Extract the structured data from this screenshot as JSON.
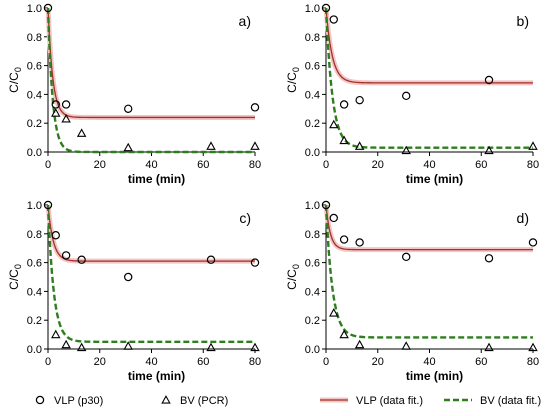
{
  "chart_data": [
    {
      "type": "scatter",
      "panel_label": "a)",
      "xlabel": "time (min)",
      "ylabel_main": "C/C",
      "ylabel_sub": "0",
      "xlim": [
        0,
        80
      ],
      "ylim": [
        0,
        1.0
      ],
      "xticks": [
        "0",
        "20",
        "40",
        "60",
        "80"
      ],
      "yticks": [
        "0.0",
        "0.2",
        "0.4",
        "0.6",
        "0.8",
        "1.0"
      ],
      "series": [
        {
          "name": "VLP (p30)",
          "marker": "circle",
          "x": [
            0,
            3,
            7,
            31,
            80
          ],
          "y": [
            1.0,
            0.33,
            0.33,
            0.3,
            0.31
          ]
        },
        {
          "name": "BV (PCR)",
          "marker": "triangle",
          "x": [
            3,
            7,
            13,
            31,
            63,
            80
          ],
          "y": [
            0.27,
            0.23,
            0.13,
            0.03,
            0.04,
            0.04
          ]
        },
        {
          "name": "VLP (data fit.)",
          "style": "line",
          "c_inf": 0.24,
          "k": 0.55
        },
        {
          "name": "BV (data fit.)",
          "style": "dashed",
          "c_inf": 0.0,
          "k": 0.55
        }
      ]
    },
    {
      "type": "scatter",
      "panel_label": "b)",
      "xlabel": "time (min)",
      "ylabel_main": "C/C",
      "ylabel_sub": "0",
      "xlim": [
        0,
        80
      ],
      "ylim": [
        0,
        1.0
      ],
      "xticks": [
        "0",
        "20",
        "40",
        "60",
        "80"
      ],
      "yticks": [
        "0.0",
        "0.2",
        "0.4",
        "0.6",
        "0.8",
        "1.0"
      ],
      "series": [
        {
          "name": "VLP (p30)",
          "marker": "circle",
          "x": [
            0,
            3,
            7,
            13,
            31,
            63
          ],
          "y": [
            1.0,
            0.92,
            0.33,
            0.36,
            0.39,
            0.5
          ]
        },
        {
          "name": "BV (PCR)",
          "marker": "triangle",
          "x": [
            3,
            7,
            13,
            31,
            63,
            80
          ],
          "y": [
            0.19,
            0.08,
            0.04,
            0.01,
            0.01,
            0.04
          ]
        },
        {
          "name": "VLP (data fit.)",
          "style": "line",
          "c_inf": 0.48,
          "k": 0.42
        },
        {
          "name": "BV (data fit.)",
          "style": "dashed",
          "c_inf": 0.03,
          "k": 0.4
        }
      ]
    },
    {
      "type": "scatter",
      "panel_label": "c)",
      "xlabel": "time (min)",
      "ylabel_main": "C/C",
      "ylabel_sub": "0",
      "xlim": [
        0,
        80
      ],
      "ylim": [
        0,
        1.0
      ],
      "xticks": [
        "0",
        "20",
        "40",
        "60",
        "80"
      ],
      "yticks": [
        "0.0",
        "0.2",
        "0.4",
        "0.6",
        "0.8",
        "1.0"
      ],
      "series": [
        {
          "name": "VLP (p30)",
          "marker": "circle",
          "x": [
            0,
            3,
            7,
            13,
            31,
            63,
            80
          ],
          "y": [
            1.0,
            0.79,
            0.65,
            0.62,
            0.5,
            0.62,
            0.6
          ]
        },
        {
          "name": "BV (PCR)",
          "marker": "triangle",
          "x": [
            3,
            7,
            13,
            31,
            63,
            80
          ],
          "y": [
            0.1,
            0.03,
            0.01,
            0.02,
            0.01,
            0.01
          ]
        },
        {
          "name": "VLP (data fit.)",
          "style": "line",
          "c_inf": 0.61,
          "k": 0.5
        },
        {
          "name": "BV (data fit.)",
          "style": "dashed",
          "c_inf": 0.05,
          "k": 0.45
        }
      ]
    },
    {
      "type": "scatter",
      "panel_label": "d)",
      "xlabel": "time (min)",
      "ylabel_main": "C/C",
      "ylabel_sub": "0",
      "xlim": [
        0,
        80
      ],
      "ylim": [
        0,
        1.0
      ],
      "xticks": [
        "0",
        "20",
        "40",
        "60",
        "80"
      ],
      "yticks": [
        "0.0",
        "0.2",
        "0.4",
        "0.6",
        "0.8",
        "1.0"
      ],
      "series": [
        {
          "name": "VLP (p30)",
          "marker": "circle",
          "x": [
            0,
            3,
            7,
            13,
            31,
            63,
            80
          ],
          "y": [
            1.0,
            0.91,
            0.76,
            0.74,
            0.64,
            0.63,
            0.74
          ]
        },
        {
          "name": "BV (PCR)",
          "marker": "triangle",
          "x": [
            3,
            7,
            13,
            31,
            63,
            80
          ],
          "y": [
            0.25,
            0.1,
            0.03,
            0.02,
            0.01,
            0.01
          ]
        },
        {
          "name": "VLP (data fit.)",
          "style": "line",
          "c_inf": 0.69,
          "k": 0.6
        },
        {
          "name": "BV (data fit.)",
          "style": "dashed",
          "c_inf": 0.08,
          "k": 0.4
        }
      ]
    }
  ],
  "legend": {
    "position": "bottom",
    "items": [
      {
        "label": "VLP (p30)",
        "kind": "circle"
      },
      {
        "label": "BV (PCR)",
        "kind": "triangle"
      },
      {
        "label": "VLP (data fit.)",
        "kind": "line"
      },
      {
        "label": "BV (data fit.)",
        "kind": "dashed"
      }
    ]
  },
  "colors": {
    "vlp_fit": "#a0302a",
    "vlp_band": "#f2c4c4",
    "bv_fit": "#2e7d1e",
    "axis": "#000000"
  }
}
